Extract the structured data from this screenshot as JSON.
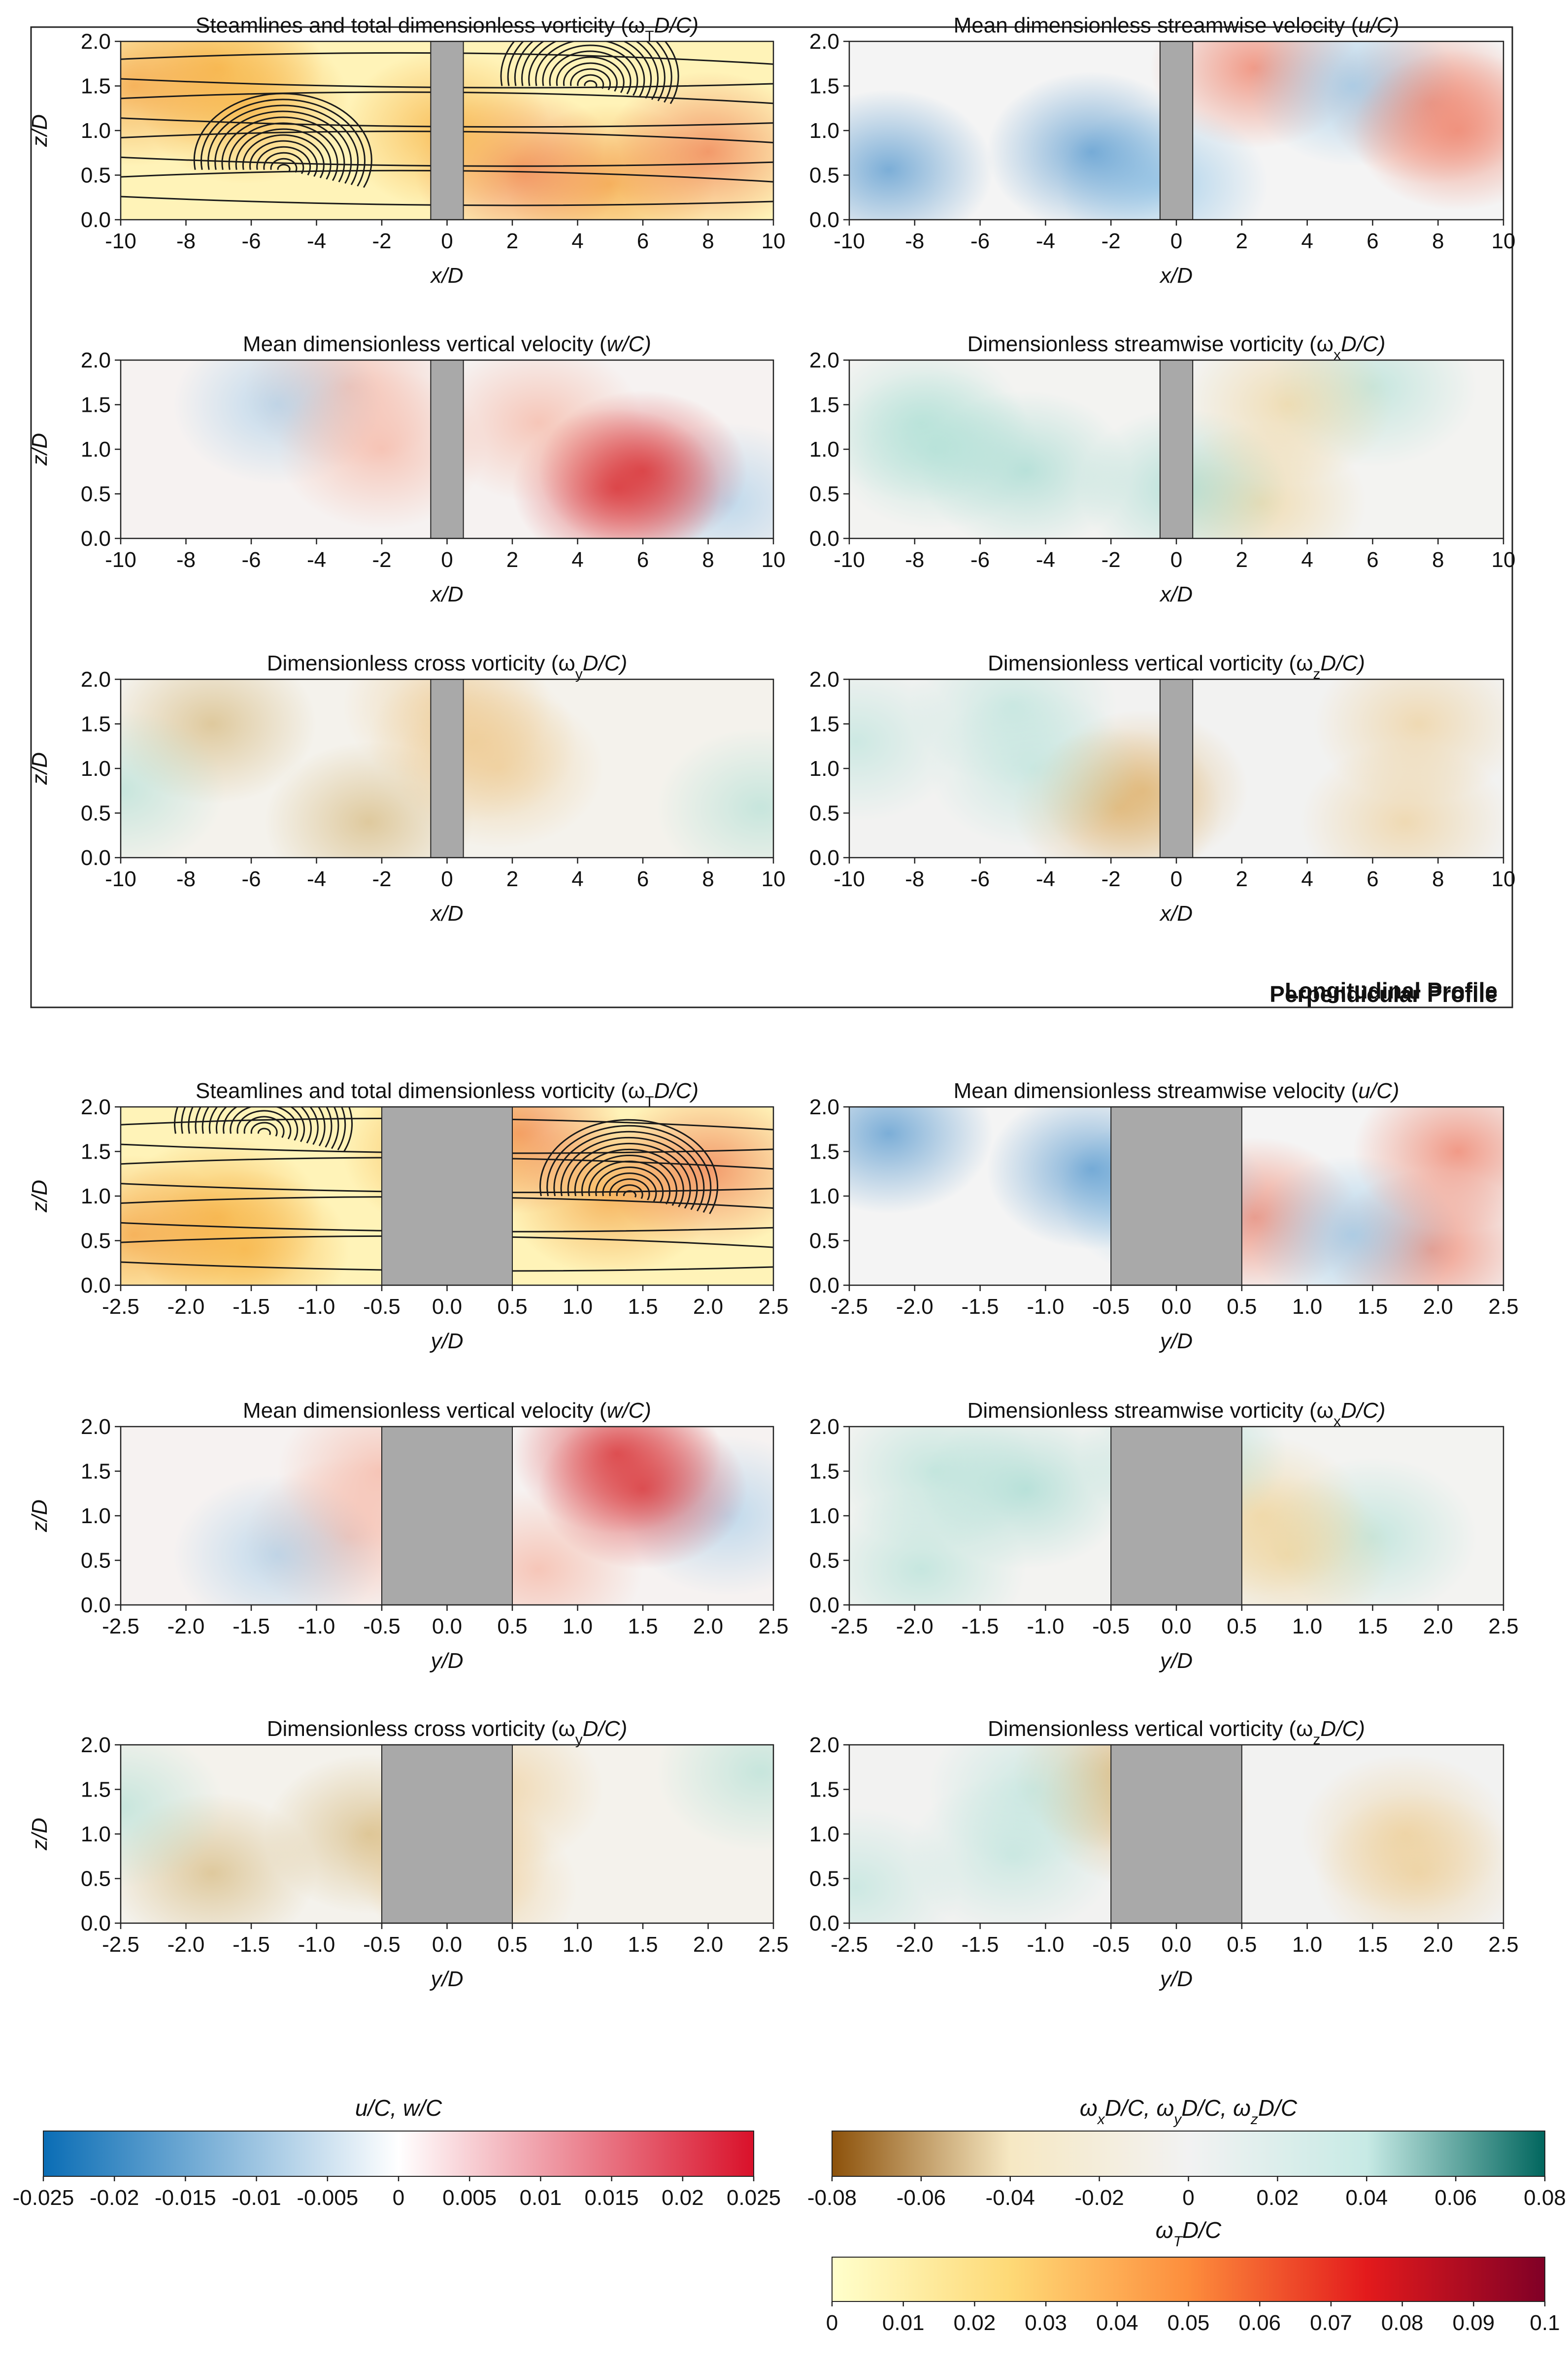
{
  "sections": [
    {
      "label": "Longitudinal Profile",
      "panels": [
        {
          "title": "Steamlines and total dimensionless vorticity (ω",
          "sub": "T",
          "title_end": "D/C)",
          "field": "wT",
          "streamlines": true
        },
        {
          "title": "Mean dimensionless streamwise velocity (",
          "sub": "",
          "title_end": "u/C)",
          "field": "u"
        },
        {
          "title": "Mean dimensionless vertical velocity (",
          "sub": "",
          "title_end": "w/C)",
          "field": "w"
        },
        {
          "title": "Dimensionless streamwise vorticity (ω",
          "sub": "x",
          "title_end": "D/C)",
          "field": "wx"
        },
        {
          "title": "Dimensionless cross vorticity (ω",
          "sub": "y",
          "title_end": "D/C)",
          "field": "wy"
        },
        {
          "title": "Dimensionless vertical vorticity (ω",
          "sub": "z",
          "title_end": "D/C)",
          "field": "wz"
        }
      ],
      "xlabel": "x/D",
      "ylabel": "z/D",
      "xticks": [
        "-10",
        "-8",
        "-6",
        "-4",
        "-2",
        "0",
        "2",
        "4",
        "6",
        "8",
        "10"
      ],
      "yticks": [
        "0.0",
        "0.5",
        "1.0",
        "1.5",
        "2.0"
      ]
    },
    {
      "label": "Perpendicular Profile",
      "panels": [
        {
          "title": "Steamlines and total dimensionless vorticity (ω",
          "sub": "T",
          "title_end": "D/C)",
          "field": "wT",
          "streamlines": true
        },
        {
          "title": "Mean dimensionless streamwise velocity (",
          "sub": "",
          "title_end": "u/C)",
          "field": "u"
        },
        {
          "title": "Mean dimensionless vertical velocity (",
          "sub": "",
          "title_end": "w/C)",
          "field": "w"
        },
        {
          "title": "Dimensionless streamwise vorticity (ω",
          "sub": "x",
          "title_end": "D/C)",
          "field": "wx"
        },
        {
          "title": "Dimensionless cross vorticity (ω",
          "sub": "y",
          "title_end": "D/C)",
          "field": "wy"
        },
        {
          "title": "Dimensionless vertical vorticity (ω",
          "sub": "z",
          "title_end": "D/C)",
          "field": "wz"
        }
      ],
      "xlabel": "y/D",
      "ylabel": "z/D",
      "xticks": [
        "-2.5",
        "-2.0",
        "-1.5",
        "-1.0",
        "-0.5",
        "0.0",
        "0.5",
        "1.0",
        "1.5",
        "2.0",
        "2.5"
      ],
      "yticks": [
        "0.0",
        "0.5",
        "1.0",
        "1.5",
        "2.0"
      ]
    }
  ],
  "colorbars": {
    "velocity": {
      "title": "u/C, w/C",
      "ticks": [
        "-0.025",
        "-0.02",
        "-0.015",
        "-0.01",
        "-0.005",
        "0",
        "0.005",
        "0.01",
        "0.015",
        "0.02",
        "0.025"
      ],
      "colors": [
        "#0a6db5",
        "#ffffff",
        "#d9112a"
      ]
    },
    "vorticity": {
      "title_parts": [
        "ω",
        "x",
        "D/C, ω",
        "y",
        "D/C, ω",
        "z",
        "D/C"
      ],
      "ticks": [
        "-0.08",
        "-0.06",
        "-0.04",
        "-0.02",
        "0",
        "0.02",
        "0.04",
        "0.06",
        "0.08"
      ],
      "colors": [
        "#8c510a",
        "#f6e8c3",
        "#f2f2f2",
        "#c7eae5",
        "#01665e"
      ]
    },
    "total": {
      "title_parts": [
        "ω",
        "T",
        "D/C"
      ],
      "ticks": [
        "0",
        "0.01",
        "0.02",
        "0.03",
        "0.04",
        "0.05",
        "0.06",
        "0.07",
        "0.08",
        "0.09",
        "0.1"
      ],
      "colors": [
        "#ffffcc",
        "#fed976",
        "#fd8d3c",
        "#e31a1c",
        "#800026"
      ]
    }
  },
  "chart_data": {
    "type": "heatmap",
    "description_fields": [
      "wT",
      "u",
      "w",
      "wx",
      "wy",
      "wz"
    ],
    "longitudinal": {
      "x_range": [
        -10,
        10
      ],
      "z_range": [
        0,
        2
      ],
      "obstacle_x": [
        -0.5,
        0.5
      ]
    },
    "perpendicular": {
      "y_range": [
        -2.5,
        2.5
      ],
      "z_range": [
        0,
        2
      ],
      "obstacle_y": [
        -0.5,
        0.5
      ]
    },
    "colorbar_ranges": {
      "u_w": [
        -0.025,
        0.025
      ],
      "vorticity_components": [
        -0.08,
        0.08
      ],
      "total_vorticity": [
        0,
        0.1
      ]
    }
  }
}
